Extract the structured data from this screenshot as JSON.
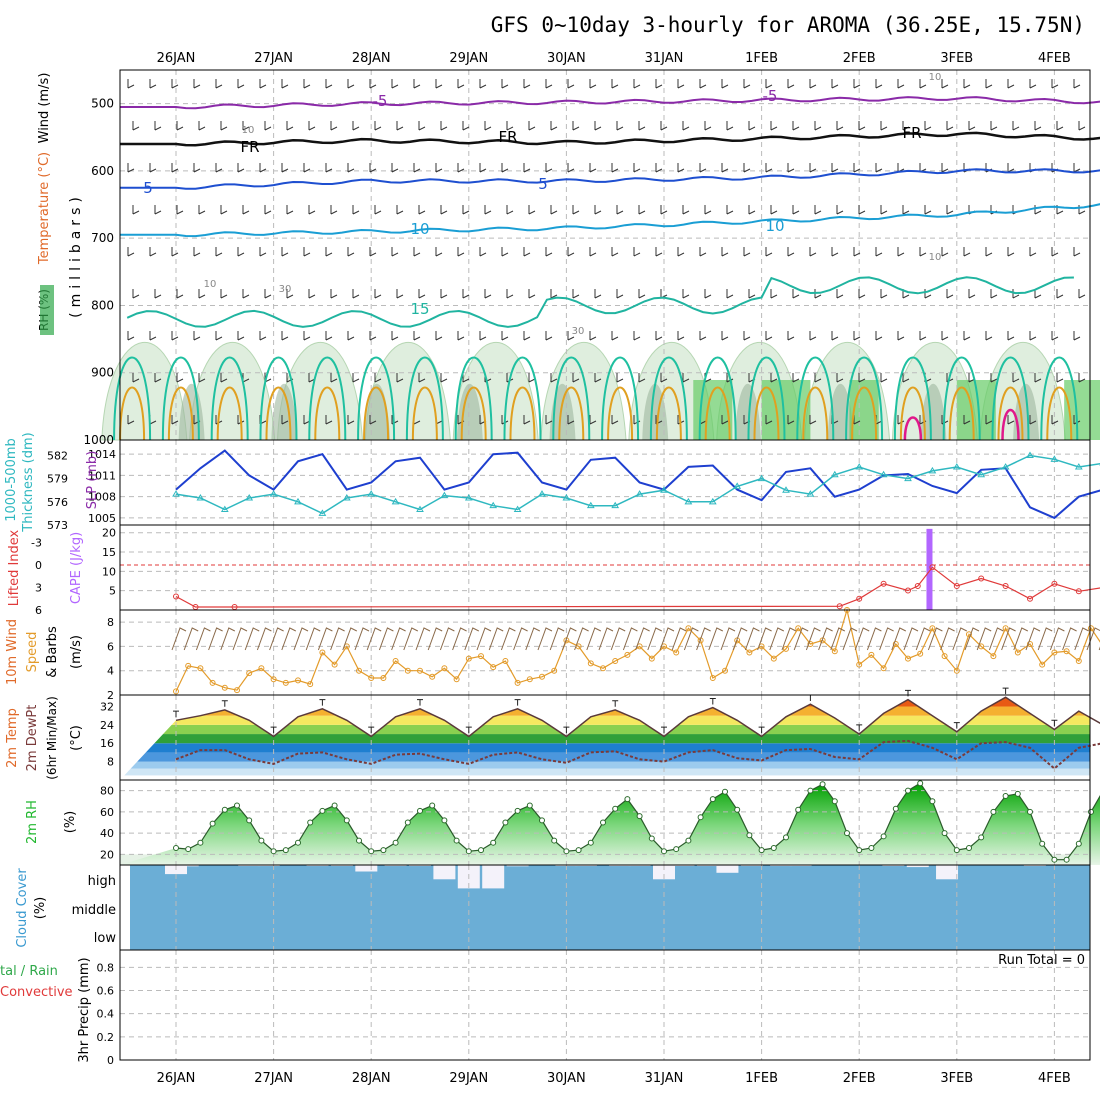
{
  "title": "GFS 0~10day 3-hourly for AROMA (36.25E, 15.75N)",
  "date_labels": [
    "26JAN",
    "27JAN",
    "28JAN",
    "29JAN",
    "30JAN",
    "31JAN",
    "1FEB",
    "2FEB",
    "3FEB",
    "4FEB"
  ],
  "colors": {
    "temp_contours": "#00a0c0",
    "rh_shade": "#2fa84a",
    "slp_line": "#1e3fcf",
    "thickness_line": "#2fb8c0",
    "cape_bar": "#b266ff",
    "lifted_index": "#e03a3a",
    "wind_speed": "#e39b2a",
    "barbs": "#8a6a4a",
    "dewpoint": "#7a3a3a",
    "rh2m": "#22b830",
    "cloud": "#6baed6"
  },
  "chart_data": [
    {
      "type": "area",
      "title": "Upper-air cross section",
      "ylabel_parts": [
        "RH (%)",
        "Temperature (°C)",
        "Wind (m/s)"
      ],
      "ylabel_unit": "(millibars)",
      "y_ticks": [
        500,
        600,
        700,
        800,
        900,
        1000
      ],
      "ylim": [
        450,
        1000
      ],
      "contour_labels": [
        {
          "label": "-5"
        },
        {
          "label": "-5"
        },
        {
          "label": "FR"
        },
        {
          "label": "FR"
        },
        {
          "label": "FR"
        },
        {
          "label": "5"
        },
        {
          "label": "5"
        },
        {
          "label": "10"
        },
        {
          "label": "10"
        },
        {
          "label": "15"
        },
        {
          "label": "10"
        },
        {
          "label": "10"
        },
        {
          "label": "10"
        },
        {
          "label": "30"
        },
        {
          "label": "30"
        },
        {
          "label": "10"
        }
      ],
      "series": [
        {
          "name": "-5C isotherm",
          "x": [
            0,
            2,
            4,
            6,
            8,
            9.5
          ],
          "y": [
            505,
            500,
            498,
            495,
            492,
            498
          ]
        },
        {
          "name": "FR isotherm",
          "x": [
            0,
            2,
            4,
            6,
            8,
            9.5
          ],
          "y": [
            560,
            555,
            558,
            552,
            545,
            552
          ]
        },
        {
          "name": "5C isotherm",
          "x": [
            0,
            2,
            4,
            6,
            8,
            9.5
          ],
          "y": [
            625,
            615,
            615,
            610,
            600,
            600
          ]
        },
        {
          "name": "10C isotherm",
          "x": [
            0,
            2,
            4,
            6,
            8,
            9.5
          ],
          "y": [
            695,
            690,
            685,
            675,
            665,
            650
          ]
        }
      ]
    },
    {
      "type": "line",
      "ylabel_left": "1000-500mb Thickness (dm)",
      "ylabel_right": "SLP (mb)",
      "left_ticks": [
        573,
        576,
        579,
        582
      ],
      "right_ticks": [
        1005,
        1008,
        1011,
        1014
      ],
      "left_lim": [
        573,
        584
      ],
      "right_lim": [
        1004,
        1016
      ],
      "series": [
        {
          "name": "SLP",
          "x": [
            0,
            0.25,
            0.5,
            0.75,
            1,
            1.25,
            1.5,
            1.75,
            2,
            2.25,
            2.5,
            2.75,
            3,
            3.25,
            3.5,
            3.75,
            4,
            4.25,
            4.5,
            4.75,
            5,
            5.25,
            5.5,
            5.75,
            6,
            6.25,
            6.5,
            6.75,
            7,
            7.25,
            7.5,
            7.75,
            8,
            8.25,
            8.5,
            8.75,
            9,
            9.25,
            9.5
          ],
          "values": [
            1009,
            1012,
            1014.5,
            1011,
            1009,
            1013,
            1014,
            1009,
            1010,
            1013,
            1013.5,
            1009,
            1010,
            1014,
            1014.2,
            1010,
            1009,
            1013.2,
            1013.5,
            1010,
            1009,
            1012.2,
            1012.4,
            1009,
            1007.5,
            1011.5,
            1012,
            1008,
            1009,
            1011,
            1011.2,
            1009.5,
            1008.5,
            1011.8,
            1012,
            1006.5,
            1005,
            1008,
            1009
          ]
        },
        {
          "name": "Thickness",
          "x": [
            0,
            0.25,
            0.5,
            0.75,
            1,
            1.25,
            1.5,
            1.75,
            2,
            2.25,
            2.5,
            2.75,
            3,
            3.25,
            3.5,
            3.75,
            4,
            4.25,
            4.5,
            4.75,
            5,
            5.25,
            5.5,
            5.75,
            6,
            6.25,
            6.5,
            6.75,
            7,
            7.25,
            7.5,
            7.75,
            8,
            8.25,
            8.5,
            8.75,
            9,
            9.25,
            9.5
          ],
          "values": [
            577,
            576.5,
            575,
            576.5,
            577,
            576,
            574.5,
            576.5,
            577,
            576,
            575,
            576.8,
            576.5,
            575.5,
            575,
            577,
            576.5,
            575.5,
            575.5,
            577,
            577.5,
            576,
            576,
            578,
            579,
            577.5,
            577,
            579.5,
            580.5,
            579.5,
            579,
            580,
            580.5,
            579.5,
            580.5,
            582,
            581.5,
            580.5,
            581
          ]
        }
      ]
    },
    {
      "type": "bar",
      "ylabel_left": "Lifted Index",
      "ylabel_right": "CAPE (J/kg)",
      "left_ticks": [
        -3,
        0,
        3,
        6
      ],
      "right_ticks": [
        5,
        10,
        15,
        20
      ],
      "right_lim": [
        0,
        22
      ],
      "cape": {
        "x": [
          7.72
        ],
        "values": [
          21
        ]
      },
      "lifted_index": {
        "x": [
          0,
          0.2,
          0.6,
          6.8,
          7.0,
          7.25,
          7.5,
          7.6,
          7.75,
          8,
          8.25,
          8.5,
          8.75,
          9,
          9.25,
          9.5
        ],
        "values": [
          4.2,
          5.6,
          5.6,
          5.5,
          4.5,
          2.5,
          3.4,
          2.8,
          0.3,
          2.8,
          1.8,
          2.8,
          4.5,
          2.5,
          3.5,
          3
        ]
      }
    },
    {
      "type": "line",
      "ylabel_parts": [
        "10m Wind",
        "Speed",
        "& Barbs",
        "(m/s)"
      ],
      "y_ticks": [
        2,
        4,
        6,
        8
      ],
      "ylim": [
        2,
        9
      ],
      "series": [
        {
          "name": "10m wind speed",
          "x": [
            0,
            0.125,
            0.25,
            0.375,
            0.5,
            0.625,
            0.75,
            0.875,
            1,
            1.125,
            1.25,
            1.375,
            1.5,
            1.625,
            1.75,
            1.875,
            2,
            2.125,
            2.25,
            2.375,
            2.5,
            2.625,
            2.75,
            2.875,
            3,
            3.125,
            3.25,
            3.375,
            3.5,
            3.625,
            3.75,
            3.875,
            4,
            4.125,
            4.25,
            4.375,
            4.5,
            4.625,
            4.75,
            4.875,
            5,
            5.125,
            5.25,
            5.375,
            5.5,
            5.625,
            5.75,
            5.875,
            6,
            6.125,
            6.25,
            6.375,
            6.5,
            6.625,
            6.75,
            6.875,
            7,
            7.125,
            7.25,
            7.375,
            7.5,
            7.625,
            7.75,
            7.875,
            8,
            8.125,
            8.25,
            8.375,
            8.5,
            8.625,
            8.75,
            8.875,
            9,
            9.125,
            9.25,
            9.375,
            9.5
          ],
          "values": [
            2.3,
            4.4,
            4.2,
            3,
            2.6,
            2.4,
            3.8,
            4.2,
            3.3,
            3,
            3.2,
            2.9,
            5.5,
            4.5,
            6,
            4,
            3.4,
            3.4,
            4.8,
            4,
            4,
            3.5,
            4.2,
            3.3,
            5,
            5.2,
            4.3,
            4.8,
            3,
            3.3,
            3.5,
            4,
            6.5,
            6,
            4.6,
            4.2,
            4.8,
            5.3,
            6,
            5,
            6,
            5.5,
            7.5,
            6.5,
            3.4,
            4,
            6.5,
            5.5,
            6,
            5,
            5.8,
            7.5,
            6.2,
            6.5,
            5.6,
            9,
            4.5,
            5.3,
            4.2,
            6.2,
            5,
            5.4,
            7.5,
            5.2,
            4,
            7,
            6,
            5.2,
            7.5,
            5.5,
            6.2,
            4.5,
            5.5,
            5.6,
            4.8,
            7.5,
            6
          ]
        }
      ]
    },
    {
      "type": "area",
      "ylabel_parts": [
        "2m Temp",
        "2m DewPt",
        "(6hr Min/Max)",
        "(°C)"
      ],
      "y_ticks": [
        8,
        16,
        24,
        32
      ],
      "ylim": [
        0,
        37
      ],
      "series": [
        {
          "name": "2m Temp",
          "x": [
            0,
            0.25,
            0.5,
            0.75,
            1,
            1.25,
            1.5,
            1.75,
            2,
            2.25,
            2.5,
            2.75,
            3,
            3.25,
            3.5,
            3.75,
            4,
            4.25,
            4.5,
            4.75,
            5,
            5.25,
            5.5,
            5.75,
            6,
            6.25,
            6.5,
            6.75,
            7,
            7.25,
            7.5,
            7.75,
            8,
            8.25,
            8.5,
            8.75,
            9,
            9.25,
            9.5
          ],
          "values": [
            26,
            28,
            30.5,
            26,
            19,
            27.5,
            31,
            26,
            19,
            27.5,
            31,
            26,
            19,
            27.5,
            31,
            26,
            19,
            27.5,
            30.5,
            26,
            19,
            27.5,
            31.5,
            26,
            19,
            27.5,
            33,
            27,
            20,
            29,
            35,
            28,
            21,
            30,
            36,
            29,
            22,
            30,
            24
          ]
        },
        {
          "name": "2m DewPt",
          "x": [
            0,
            0.25,
            0.5,
            0.75,
            1,
            1.25,
            1.5,
            1.75,
            2,
            2.25,
            2.5,
            2.75,
            3,
            3.25,
            3.5,
            3.75,
            4,
            4.25,
            4.5,
            4.75,
            5,
            5.25,
            5.5,
            5.75,
            6,
            6.25,
            6.5,
            6.75,
            7,
            7.25,
            7.5,
            7.75,
            8,
            8.25,
            8.5,
            8.75,
            9,
            9.25,
            9.5
          ],
          "values": [
            9,
            13,
            13,
            9,
            7,
            11.5,
            12,
            9,
            7,
            11,
            11.5,
            9,
            7,
            11,
            12,
            9,
            7.5,
            12,
            12.5,
            9,
            8,
            12,
            13,
            9.5,
            8.5,
            13,
            13.5,
            10,
            9,
            16.5,
            17,
            14,
            9,
            16,
            16.5,
            14,
            5,
            14,
            16
          ]
        }
      ]
    },
    {
      "type": "area",
      "ylabel_parts": [
        "2m RH",
        "(%)"
      ],
      "y_ticks": [
        20,
        40,
        60,
        80
      ],
      "ylim": [
        10,
        90
      ],
      "series": [
        {
          "name": "2m RH",
          "x": [
            0,
            0.125,
            0.25,
            0.375,
            0.5,
            0.625,
            0.75,
            0.875,
            1,
            1.125,
            1.25,
            1.375,
            1.5,
            1.625,
            1.75,
            1.875,
            2,
            2.125,
            2.25,
            2.375,
            2.5,
            2.625,
            2.75,
            2.875,
            3,
            3.125,
            3.25,
            3.375,
            3.5,
            3.625,
            3.75,
            3.875,
            4,
            4.125,
            4.25,
            4.375,
            4.5,
            4.625,
            4.75,
            4.875,
            5,
            5.125,
            5.25,
            5.375,
            5.5,
            5.625,
            5.75,
            5.875,
            6,
            6.125,
            6.25,
            6.375,
            6.5,
            6.625,
            6.75,
            6.875,
            7,
            7.125,
            7.25,
            7.375,
            7.5,
            7.625,
            7.75,
            7.875,
            8,
            8.125,
            8.25,
            8.375,
            8.5,
            8.625,
            8.75,
            8.875,
            9,
            9.125,
            9.25,
            9.375,
            9.5
          ],
          "values": [
            26,
            25,
            31,
            49,
            62,
            66,
            52,
            33,
            23,
            24,
            31,
            50,
            61,
            66,
            52,
            33,
            23,
            24,
            31,
            50,
            61,
            66,
            52,
            33,
            23,
            24,
            31,
            50,
            61,
            66,
            52,
            33,
            23,
            24,
            31,
            50,
            63,
            72,
            56,
            35,
            23,
            25,
            33,
            55,
            72,
            79,
            62,
            38,
            24,
            26,
            36,
            62,
            80,
            86,
            70,
            40,
            24,
            26,
            37,
            63,
            80,
            87,
            70,
            40,
            24,
            26,
            36,
            60,
            75,
            77,
            60,
            30,
            15,
            15,
            30,
            60,
            80
          ]
        }
      ]
    },
    {
      "type": "bar",
      "ylabel_parts": [
        "Cloud Cover",
        "(%)"
      ],
      "y_ticks": [
        "high",
        "middle",
        "low"
      ],
      "high_cloud_fraction": {
        "x": [
          0,
          0.12,
          0.4,
          0.75,
          0.95,
          1.2,
          1.45,
          1.7,
          1.95,
          2.25,
          2.5,
          2.75,
          3,
          3.25,
          3.5,
          4,
          4.2,
          4.55,
          4.75,
          5,
          5.2,
          5.45,
          5.65,
          5.9,
          6.2,
          6.4,
          6.6,
          6.85,
          7.05,
          7.35,
          7.6,
          7.9,
          8.25,
          8.5,
          8.8,
          9.1,
          9.35
        ],
        "values": [
          0.35,
          0.05,
          0,
          0.04,
          0.04,
          0.02,
          0.04,
          0.04,
          0.25,
          0.04,
          0.04,
          0.55,
          0.9,
          0.9,
          0.05,
          0.04,
          0.04,
          0.04,
          0.04,
          0.55,
          0.04,
          0.04,
          0.3,
          0.04,
          0.04,
          0.04,
          0,
          0,
          0,
          0.04,
          0.08,
          0.55,
          0,
          0,
          0.04,
          0,
          0
        ]
      }
    },
    {
      "type": "bar",
      "ylabel_parts": [
        "3hr Precip (mm)",
        "Total / Rain",
        "Convective"
      ],
      "y_ticks": [
        0,
        0.2,
        0.4,
        0.6,
        0.8
      ],
      "ylim": [
        0,
        1
      ],
      "run_total_label": "Run Total = 0",
      "values": []
    }
  ]
}
